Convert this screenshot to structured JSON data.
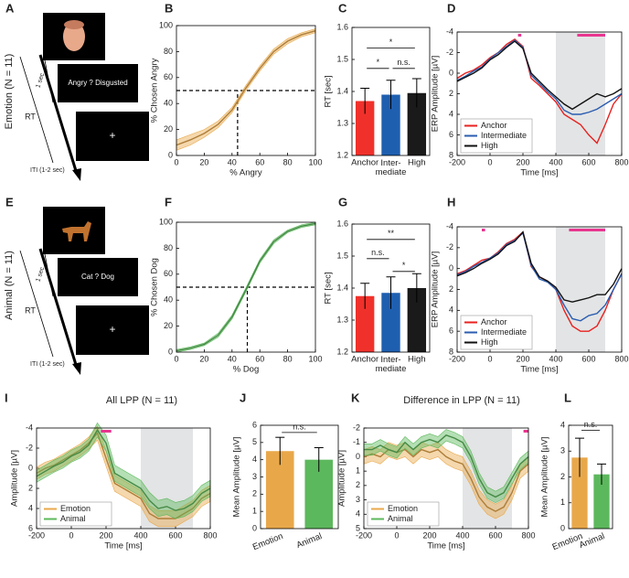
{
  "schematics": [
    {
      "panel": "A",
      "condition": "Emotion (N = 11)",
      "choice": "Angry  ?  Disgusted",
      "duration": "1 sec",
      "response": "RT",
      "iti": "ITI (1-2 sec)",
      "fixation": "+"
    },
    {
      "panel": "E",
      "condition": "Animal (N = 11)",
      "choice": "Cat  ?  Dog",
      "duration": "1 sec",
      "response": "RT",
      "iti": "ITI (1-2 sec)",
      "fixation": "+"
    }
  ],
  "chart_data": [
    {
      "type": "line",
      "panel": "B",
      "xlabel": "% Angry",
      "ylabel": "% Chosen Angry",
      "x": [
        0,
        10,
        20,
        30,
        40,
        50,
        60,
        70,
        80,
        90,
        100
      ],
      "series": [
        {
          "color": "#e8a84a",
          "values": [
            8,
            12,
            17,
            24,
            35,
            52,
            67,
            80,
            88,
            93,
            96
          ],
          "errors": [
            4,
            4,
            3,
            2.5,
            2,
            2,
            2,
            2,
            2,
            1.5,
            1.5
          ]
        }
      ],
      "xlim": [
        0,
        100
      ],
      "xticks": [
        0,
        20,
        40,
        60,
        80,
        100
      ],
      "ylim": [
        0,
        100
      ],
      "yticks": [
        0,
        20,
        40,
        60,
        80,
        100
      ],
      "hlines": [
        50
      ],
      "vlines": [
        44
      ]
    },
    {
      "type": "bar",
      "panel": "C",
      "ylabel": "RT [sec]",
      "categories": [
        "Anchor",
        "Inter-\nmediate",
        "High"
      ],
      "values": [
        1.37,
        1.39,
        1.395
      ],
      "errors": [
        0.04,
        0.045,
        0.045
      ],
      "colors": [
        "#f0312b",
        "#1f5fb0",
        "#1a1a1a"
      ],
      "ylim": [
        1.2,
        1.6
      ],
      "yticks": [
        1.2,
        1.3,
        1.4,
        1.5,
        1.6
      ],
      "annotations": [
        "*",
        "n.s.",
        "*"
      ]
    },
    {
      "type": "line",
      "panel": "D",
      "xlabel": "Time [ms]",
      "ylabel": "ERP Amplitude [µV]",
      "x": [
        -200,
        -150,
        -100,
        -50,
        0,
        50,
        100,
        150,
        200,
        250,
        300,
        350,
        400,
        450,
        500,
        550,
        600,
        650,
        700,
        750,
        800
      ],
      "series": [
        {
          "name": "Anchor",
          "color": "#e8211f",
          "values": [
            0.5,
            0,
            -0.3,
            -0.8,
            -1.5,
            -2,
            -2.8,
            -3.3,
            -2.6,
            0.5,
            1.2,
            2,
            2.8,
            4,
            4.5,
            5,
            6,
            6.8,
            5,
            3,
            2
          ]
        },
        {
          "name": "Intermediate",
          "color": "#2a5db0",
          "values": [
            0.7,
            0.3,
            -0.2,
            -0.6,
            -1.4,
            -2,
            -2.6,
            -3.2,
            -2.5,
            0.2,
            1,
            1.8,
            2.5,
            3.6,
            4,
            4,
            3.8,
            3.5,
            3,
            2.5,
            2
          ]
        },
        {
          "name": "High",
          "color": "#111111",
          "values": [
            0.8,
            0.4,
            0,
            -0.5,
            -1.3,
            -1.8,
            -2.5,
            -3.1,
            -2.4,
            0,
            0.8,
            1.6,
            2.3,
            3,
            3.5,
            3,
            2.5,
            2,
            2.3,
            2,
            1.5
          ]
        }
      ],
      "xlim": [
        -200,
        800
      ],
      "xticks": [
        -200,
        0,
        200,
        400,
        600,
        800
      ],
      "ylim": [
        -4,
        8
      ],
      "yticks": [
        -4,
        -2,
        0,
        2,
        4,
        6,
        8
      ],
      "invert_y": true,
      "shaded_region": [
        400,
        700
      ],
      "sig_intervals": [
        [
          170,
          190
        ],
        [
          530,
          700
        ]
      ],
      "sig_color": "#e8368f",
      "legend": "lower left"
    },
    {
      "type": "line",
      "panel": "F",
      "xlabel": "% Dog",
      "ylabel": "% Chosen Dog",
      "x": [
        0,
        10,
        20,
        30,
        40,
        50,
        60,
        70,
        80,
        90,
        100
      ],
      "series": [
        {
          "color": "#5cb85c",
          "values": [
            1,
            3,
            6,
            13,
            27,
            48,
            70,
            85,
            93,
            97,
            99
          ],
          "errors": [
            1,
            1,
            1,
            1.5,
            1.5,
            1.5,
            1.5,
            1.5,
            1,
            1,
            1
          ]
        }
      ],
      "xlim": [
        0,
        100
      ],
      "xticks": [
        0,
        20,
        40,
        60,
        80,
        100
      ],
      "ylim": [
        0,
        100
      ],
      "yticks": [
        0,
        20,
        40,
        60,
        80,
        100
      ],
      "hlines": [
        50
      ],
      "vlines": [
        51
      ]
    },
    {
      "type": "bar",
      "panel": "G",
      "ylabel": "RT [sec]",
      "categories": [
        "Anchor",
        "Inter-\nmediate",
        "High"
      ],
      "values": [
        1.375,
        1.385,
        1.4
      ],
      "errors": [
        0.04,
        0.05,
        0.045
      ],
      "colors": [
        "#f0312b",
        "#1f5fb0",
        "#1a1a1a"
      ],
      "ylim": [
        1.2,
        1.6
      ],
      "yticks": [
        1.2,
        1.3,
        1.4,
        1.5,
        1.6
      ],
      "annotations": [
        "n.s.",
        "**",
        "*"
      ]
    },
    {
      "type": "line",
      "panel": "H",
      "xlabel": "Time [ms]",
      "ylabel": "ERP Amplitude [µV]",
      "x": [
        -200,
        -150,
        -100,
        -50,
        0,
        50,
        100,
        150,
        200,
        250,
        300,
        350,
        400,
        450,
        500,
        550,
        600,
        650,
        700,
        750,
        800
      ],
      "series": [
        {
          "name": "Anchor",
          "color": "#e8211f",
          "values": [
            0.5,
            0.2,
            -0.3,
            -0.8,
            -1,
            -1.6,
            -2.4,
            -2.8,
            -3.5,
            -0.2,
            0.8,
            1.2,
            2,
            4,
            5.5,
            6,
            6,
            5.5,
            4,
            2,
            0.5
          ]
        },
        {
          "name": "Intermediate",
          "color": "#2a5db0",
          "values": [
            0.6,
            0.3,
            -0.2,
            -0.6,
            -1,
            -1.5,
            -2.3,
            -2.7,
            -3.4,
            -0.3,
            1,
            1.3,
            2,
            3.5,
            4.8,
            5,
            4.5,
            4.3,
            3.5,
            2,
            0.5
          ]
        },
        {
          "name": "High",
          "color": "#111111",
          "values": [
            0.7,
            0.4,
            0,
            -0.5,
            -0.9,
            -1.4,
            -2.2,
            -2.6,
            -3.5,
            -0.5,
            0.8,
            1.2,
            1.8,
            3,
            3.2,
            3,
            2.8,
            2.5,
            2.5,
            1.5,
            0
          ]
        }
      ],
      "xlim": [
        -200,
        800
      ],
      "xticks": [
        -200,
        0,
        200,
        400,
        600,
        800
      ],
      "ylim": [
        -4,
        8
      ],
      "yticks": [
        -4,
        -2,
        0,
        2,
        4,
        6,
        8
      ],
      "invert_y": true,
      "shaded_region": [
        400,
        700
      ],
      "sig_intervals": [
        [
          -50,
          -30
        ],
        [
          480,
          700
        ]
      ],
      "sig_color": "#e8368f",
      "legend": "lower left"
    },
    {
      "type": "line",
      "panel": "I",
      "title": "All LPP (N = 11)",
      "xlabel": "Time [ms]",
      "ylabel": "Amplitude [µV]",
      "x": [
        -200,
        -150,
        -100,
        -50,
        0,
        50,
        100,
        150,
        200,
        250,
        300,
        350,
        400,
        450,
        500,
        550,
        600,
        650,
        700,
        750,
        800
      ],
      "series": [
        {
          "name": "Emotion",
          "color": "#e8a84a",
          "values": [
            0.5,
            0,
            -0.3,
            -0.8,
            -1.3,
            -1.8,
            -2.5,
            -3.5,
            -1,
            1.5,
            2,
            2.5,
            3,
            4.5,
            5,
            5,
            5,
            4.5,
            4,
            3,
            2.5
          ],
          "errors": [
            0.6,
            0.6,
            0.6,
            0.6,
            0.6,
            0.6,
            0.6,
            0.7,
            0.8,
            0.8,
            0.8,
            0.8,
            0.8,
            0.8,
            0.8,
            0.8,
            0.8,
            0.8,
            0.8,
            0.8,
            0.8
          ]
        },
        {
          "name": "Animal",
          "color": "#5cb85c",
          "values": [
            0.8,
            0.3,
            -0.2,
            -0.6,
            -1.2,
            -1.6,
            -2.3,
            -3.8,
            -2.5,
            0.5,
            1,
            1.5,
            2,
            3.2,
            4,
            3.8,
            4.2,
            4,
            3.5,
            2.5,
            2
          ],
          "errors": [
            0.6,
            0.6,
            0.6,
            0.6,
            0.6,
            0.6,
            0.6,
            0.7,
            0.8,
            0.8,
            0.8,
            0.8,
            0.8,
            0.8,
            0.8,
            0.8,
            0.8,
            0.8,
            0.8,
            0.8,
            0.8
          ]
        }
      ],
      "xlim": [
        -200,
        800
      ],
      "xticks": [
        -200,
        0,
        200,
        400,
        600,
        800
      ],
      "ylim": [
        -4,
        6
      ],
      "yticks": [
        -4,
        -2,
        0,
        2,
        4,
        6
      ],
      "invert_y": true,
      "shaded_region": [
        400,
        700
      ],
      "sig_intervals": [
        [
          170,
          230
        ]
      ],
      "sig_color": "#e8368f",
      "legend": "lower left"
    },
    {
      "type": "bar",
      "panel": "J",
      "ylabel": "Mean Amplitude [µV]",
      "categories": [
        "Emotion",
        "Animal"
      ],
      "values": [
        4.5,
        4.0
      ],
      "errors": [
        0.8,
        0.7
      ],
      "colors": [
        "#e8a84a",
        "#5cb85c"
      ],
      "ylim": [
        0,
        6
      ],
      "yticks": [
        0,
        1,
        2,
        3,
        4,
        5,
        6
      ],
      "annotations": [
        "n.s."
      ]
    },
    {
      "type": "line",
      "panel": "K",
      "title": "Difference in LPP (N = 11)",
      "xlabel": "Time [ms]",
      "ylabel": "Amplitude [µV]",
      "x": [
        -200,
        -150,
        -100,
        -50,
        0,
        50,
        100,
        150,
        200,
        250,
        300,
        350,
        400,
        450,
        500,
        550,
        600,
        650,
        700,
        750,
        800
      ],
      "series": [
        {
          "name": "Emotion",
          "color": "#e8a84a",
          "values": [
            0,
            -0.2,
            0,
            -0.5,
            -0.3,
            -0.5,
            0,
            -0.5,
            -0.3,
            -0.5,
            0,
            0.3,
            0.5,
            1.5,
            2.8,
            3.5,
            3.8,
            3.5,
            2.5,
            1,
            0.5
          ],
          "errors": [
            0.5,
            0.5,
            0.5,
            0.5,
            0.5,
            0.5,
            0.5,
            0.5,
            0.5,
            0.5,
            0.5,
            0.5,
            0.5,
            0.5,
            0.5,
            0.5,
            0.5,
            0.5,
            0.5,
            0.5,
            0.5
          ]
        },
        {
          "name": "Animal",
          "color": "#5cb85c",
          "values": [
            -0.5,
            -0.5,
            -0.8,
            -0.5,
            -0.3,
            -1,
            -0.5,
            -1,
            -1.2,
            -1,
            -1.5,
            -1.3,
            -1,
            0,
            1.5,
            2.5,
            2.8,
            2.5,
            1.5,
            0.5,
            0
          ],
          "errors": [
            0.4,
            0.4,
            0.4,
            0.4,
            0.4,
            0.4,
            0.4,
            0.4,
            0.4,
            0.4,
            0.4,
            0.4,
            0.4,
            0.4,
            0.4,
            0.4,
            0.4,
            0.4,
            0.4,
            0.4,
            0.4
          ]
        }
      ],
      "xlim": [
        -200,
        800
      ],
      "xticks": [
        -200,
        0,
        200,
        400,
        600,
        800
      ],
      "ylim": [
        -2,
        5
      ],
      "yticks": [
        -2,
        -1,
        0,
        1,
        2,
        3,
        4,
        5
      ],
      "invert_y": true,
      "shaded_region": [
        400,
        700
      ],
      "sig_intervals": [
        [
          770,
          800
        ]
      ],
      "sig_color": "#e8368f",
      "legend": "lower left"
    },
    {
      "type": "bar",
      "panel": "L",
      "ylabel": "Mean Amplitude [µV]",
      "categories": [
        "Emotion",
        "Animal"
      ],
      "values": [
        2.75,
        2.1
      ],
      "errors": [
        0.75,
        0.4
      ],
      "colors": [
        "#e8a84a",
        "#5cb85c"
      ],
      "ylim": [
        0,
        4
      ],
      "yticks": [
        0,
        1,
        2,
        3,
        4
      ],
      "annotations": [
        "n.s."
      ]
    }
  ]
}
